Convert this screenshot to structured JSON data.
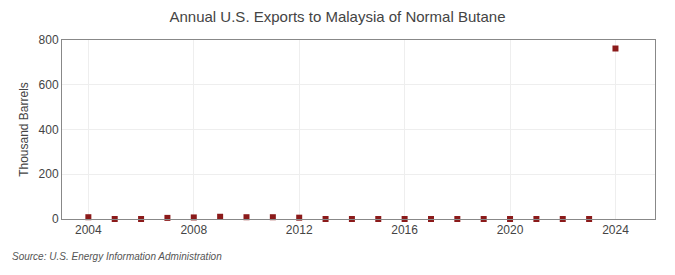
{
  "chart_data": {
    "type": "scatter",
    "title": "Annual U.S. Exports to Malaysia of Normal Butane",
    "ylabel": "Thousand Barrels",
    "annotations": [
      "Source: U.S. Energy Information Administration"
    ],
    "x": [
      2004,
      2005,
      2006,
      2007,
      2008,
      2009,
      2010,
      2011,
      2012,
      2013,
      2014,
      2015,
      2016,
      2017,
      2018,
      2019,
      2020,
      2021,
      2022,
      2023,
      2024
    ],
    "values": [
      8,
      0,
      0,
      5,
      7,
      10,
      8,
      8,
      6,
      0,
      0,
      0,
      0,
      0,
      0,
      0,
      0,
      0,
      0,
      0,
      762
    ],
    "color": "#8b1a1a",
    "marker": "square",
    "xlim": [
      2003,
      2025.5
    ],
    "xticks": [
      2004,
      2008,
      2012,
      2016,
      2020,
      2024
    ],
    "ylim": [
      0,
      800
    ],
    "yticks": [
      0,
      200,
      400,
      600,
      800
    ],
    "grid": true
  }
}
